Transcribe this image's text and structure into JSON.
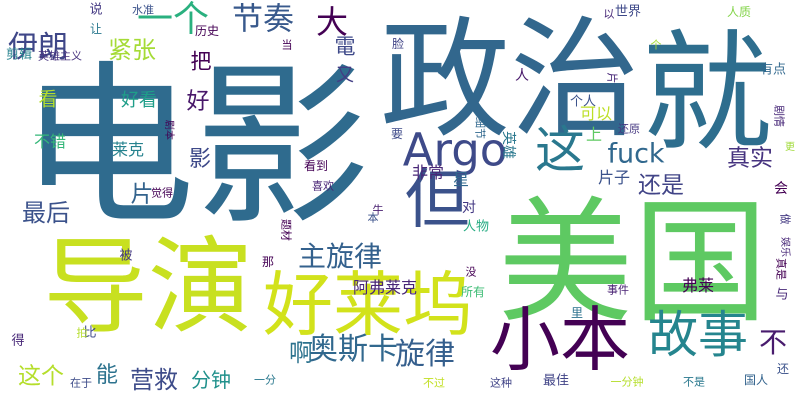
{
  "words": [
    {
      "text": "电影",
      "color": "#2f6b8e"
    },
    {
      "text": "政治",
      "color": "#32678d"
    },
    {
      "text": "就",
      "color": "#2e6e8e"
    },
    {
      "text": "美国",
      "color": "#5ec962"
    },
    {
      "text": "导演",
      "color": "#c8e020"
    },
    {
      "text": "好莱坞",
      "color": "#d2e21b"
    },
    {
      "text": "但",
      "color": "#3b528b"
    },
    {
      "text": "故事",
      "color": "#25858e"
    },
    {
      "text": "小本",
      "color": "#440154"
    },
    {
      "text": "Argo",
      "color": "#3e4a89"
    },
    {
      "text": "这",
      "color": "#2a788e"
    },
    {
      "text": "fuck",
      "color": "#31688e"
    },
    {
      "text": "奥斯卡",
      "color": "#31688e"
    },
    {
      "text": "主旋律",
      "color": "#34618d"
    },
    {
      "text": "旋律",
      "color": "#355f8d"
    },
    {
      "text": "一个",
      "color": "#2ab07f"
    },
    {
      "text": "节奏",
      "color": "#38598c"
    },
    {
      "text": "伊朗",
      "color": "#3f4788"
    },
    {
      "text": "大",
      "color": "#440154"
    },
    {
      "text": "紧张",
      "color": "#a5db36"
    },
    {
      "text": "最后",
      "color": "#3b528b"
    },
    {
      "text": "还是",
      "color": "#414487"
    },
    {
      "text": "真实",
      "color": "#46337f"
    },
    {
      "text": "不",
      "color": "#481b6d"
    },
    {
      "text": "啊",
      "color": "#2c728e"
    },
    {
      "text": "营救",
      "color": "#3e4c8a"
    },
    {
      "text": "分钟",
      "color": "#21918c"
    },
    {
      "text": "这个",
      "color": "#b5de2b"
    },
    {
      "text": "能",
      "color": "#2c728e"
    },
    {
      "text": "好",
      "color": "#48186a"
    },
    {
      "text": "影",
      "color": "#3e4989"
    },
    {
      "text": "片",
      "color": "#33638d"
    },
    {
      "text": "把",
      "color": "#440154"
    },
    {
      "text": "電",
      "color": "#3e4989"
    },
    {
      "text": "又",
      "color": "#433e85"
    },
    {
      "text": "阿弗莱克",
      "color": "#482677"
    },
    {
      "text": "非常",
      "color": "#482677"
    },
    {
      "text": "片子",
      "color": "#3b528b"
    },
    {
      "text": "星",
      "color": "#31688e"
    },
    {
      "text": "弗莱",
      "color": "#440154"
    },
    {
      "text": "看",
      "color": "#b5de2b"
    },
    {
      "text": "好看",
      "color": "#1f9e89"
    },
    {
      "text": "莱克",
      "color": "#26828e"
    },
    {
      "text": "不错",
      "color": "#35b779"
    },
    {
      "text": "可以",
      "color": "#bddf26"
    },
    {
      "text": "上",
      "color": "#5ec962"
    },
    {
      "text": "人",
      "color": "#48186a"
    },
    {
      "text": "个人",
      "color": "#3b528b"
    },
    {
      "text": "世界",
      "color": "#3e4989"
    },
    {
      "text": "人质",
      "color": "#84d44b"
    },
    {
      "text": "有点",
      "color": "#31688e"
    },
    {
      "text": "剧情",
      "color": "#482878"
    },
    {
      "text": "说",
      "color": "#443983"
    },
    {
      "text": "水准",
      "color": "#3b528b"
    },
    {
      "text": "让",
      "color": "#2a788e"
    },
    {
      "text": "历史",
      "color": "#440154"
    },
    {
      "text": "剪辑",
      "color": "#26828e"
    },
    {
      "text": "英雄主义",
      "color": "#46327e"
    },
    {
      "text": "脸",
      "color": "#414487"
    },
    {
      "text": "要",
      "color": "#3e4a89"
    },
    {
      "text": "细节",
      "color": "#31688e"
    },
    {
      "text": "英雄",
      "color": "#2a788e"
    },
    {
      "text": "还原",
      "color": "#453781"
    },
    {
      "text": "更",
      "color": "#a0da39"
    },
    {
      "text": "会",
      "color": "#440154"
    },
    {
      "text": "做",
      "color": "#443a83"
    },
    {
      "text": "觉得",
      "color": "#440154"
    },
    {
      "text": "看到",
      "color": "#440154"
    },
    {
      "text": "喜欢",
      "color": "#482475"
    },
    {
      "text": "本",
      "color": "#3b528b"
    },
    {
      "text": "牛",
      "color": "#481f70"
    },
    {
      "text": "对",
      "color": "#443983"
    },
    {
      "text": "人物",
      "color": "#25ab82"
    },
    {
      "text": "没",
      "color": "#440154"
    },
    {
      "text": "那",
      "color": "#440154"
    },
    {
      "text": "被",
      "color": "#443983"
    },
    {
      "text": "所有",
      "color": "#3dbc74"
    },
    {
      "text": "事件",
      "color": "#482173"
    },
    {
      "text": "与",
      "color": "#482878"
    },
    {
      "text": "里",
      "color": "#2c728e"
    },
    {
      "text": "比",
      "color": "#3e4989"
    },
    {
      "text": "拍",
      "color": "#b5de2b"
    },
    {
      "text": "得",
      "color": "#482878"
    },
    {
      "text": "在于",
      "color": "#3e4c8a"
    },
    {
      "text": "不过",
      "color": "#c2df23"
    },
    {
      "text": "这种",
      "color": "#414487"
    },
    {
      "text": "最佳",
      "color": "#414487"
    },
    {
      "text": "一分钟",
      "color": "#b5de2b"
    },
    {
      "text": "一分",
      "color": "#2a788e"
    },
    {
      "text": "不是",
      "color": "#2a788e"
    },
    {
      "text": "国人",
      "color": "#33638d"
    },
    {
      "text": "还",
      "color": "#3b528b"
    },
    {
      "text": "以",
      "color": "#482878"
    },
    {
      "text": "个",
      "color": "#a5db36"
    },
    {
      "text": "当",
      "color": "#440154"
    },
    {
      "text": "题材",
      "color": "#440154"
    },
    {
      "text": "真是",
      "color": "#440154"
    },
    {
      "text": "娱乐",
      "color": "#482878"
    },
    {
      "text": "剧本",
      "color": "#440154"
    },
    {
      "text": "片",
      "color": "#482878"
    }
  ]
}
